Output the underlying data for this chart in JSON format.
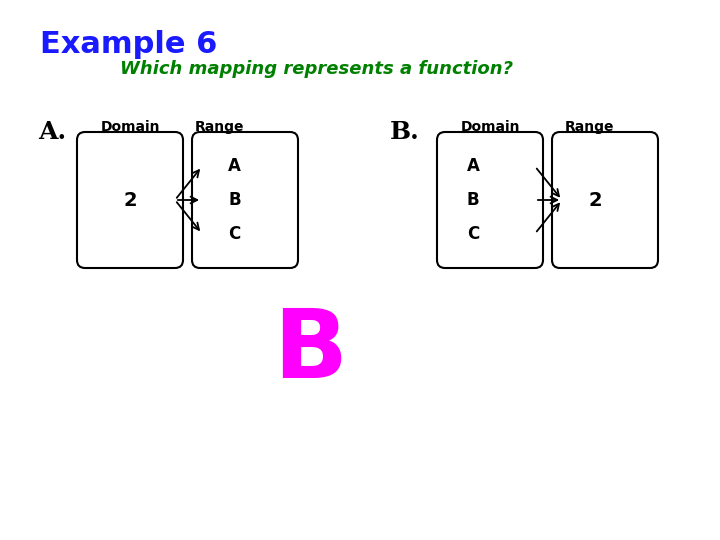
{
  "title": "Example 6",
  "title_color": "#1a1aff",
  "subtitle": "Which mapping represents a function?",
  "subtitle_color": "#008000",
  "answer": "B",
  "answer_color": "#ff00ff",
  "background_color": "#ffffff",
  "diagram_A_label": "A.",
  "diagram_B_label": "B.",
  "domain_label": "Domain",
  "range_label": "Range"
}
